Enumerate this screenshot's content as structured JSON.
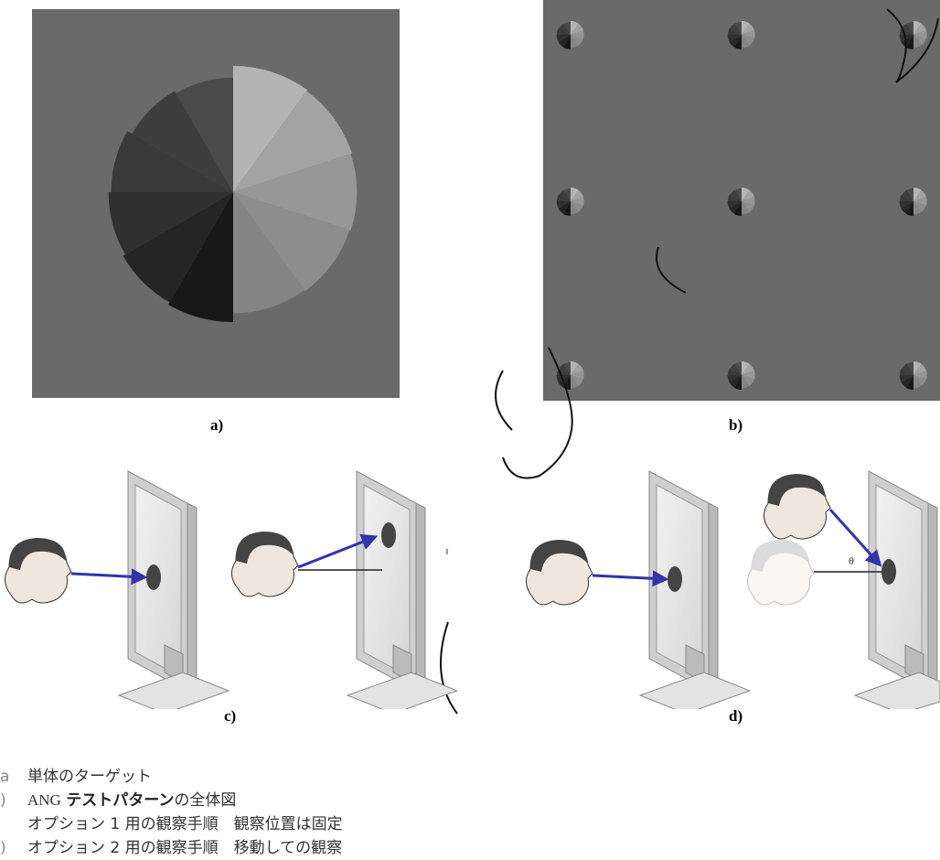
{
  "panels": {
    "a_label": "a)",
    "b_label": "b)",
    "c_label": "c)",
    "d_label": "d)",
    "theta_label": "θ"
  },
  "legend": {
    "a": {
      "mark": "a",
      "text": "単体のターゲット"
    },
    "b": {
      "mark": ")",
      "prefix": "ANG",
      "bold": "テストパターン",
      "suffix": "の全体図"
    },
    "c": {
      "mark": "",
      "text": "オプション 1 用の観察手順　観察位置は固定"
    },
    "d": {
      "mark": ")",
      "text": "オプション 2 用の観察手順　移動しての観察"
    }
  },
  "colors": {
    "background_gray": "#6a6a6a",
    "arrow_blue": "#3333aa",
    "watermark": "#111111"
  },
  "target_segments_gray": [
    "#b4b4b4",
    "#a3a3a3",
    "#979797",
    "#8d8d8d",
    "#858585",
    "#3a3a3a",
    "#303030",
    "#252525",
    "#181818",
    "#4a4a4a",
    "#3e3e3e"
  ]
}
